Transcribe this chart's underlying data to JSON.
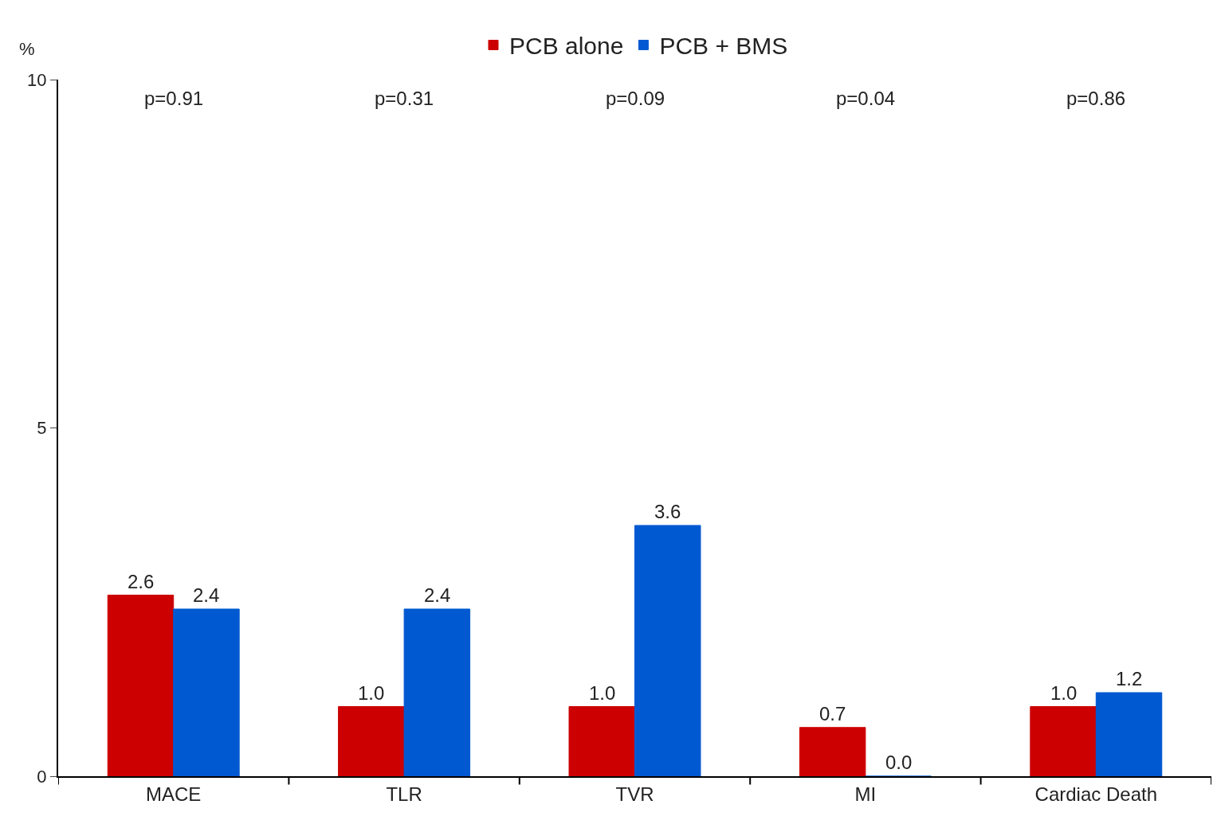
{
  "chart_data": {
    "type": "bar",
    "ylabel": "%",
    "categories": [
      "MACE",
      "TLR",
      "TVR",
      "MI",
      "Cardiac Death"
    ],
    "series": [
      {
        "name": "PCB alone",
        "color": "#cc0000",
        "values": [
          2.6,
          1.0,
          1.0,
          0.7,
          1.0
        ],
        "value_labels": [
          "2.6",
          "1.0",
          "1.0",
          "0.7",
          "1.0"
        ]
      },
      {
        "name": "PCB + BMS",
        "color": "#0059d1",
        "values": [
          2.4,
          2.4,
          3.6,
          0.0,
          1.2
        ],
        "value_labels": [
          "2.4",
          "2.4",
          "3.6",
          "0.0",
          "1.2"
        ]
      }
    ],
    "ylim": [
      0,
      10
    ],
    "yticks": [
      0,
      5,
      10
    ],
    "legend": "top",
    "annotations": [
      "p=0.91",
      "p=0.31",
      "p=0.09",
      "p=0.04",
      "p=0.86"
    ]
  }
}
